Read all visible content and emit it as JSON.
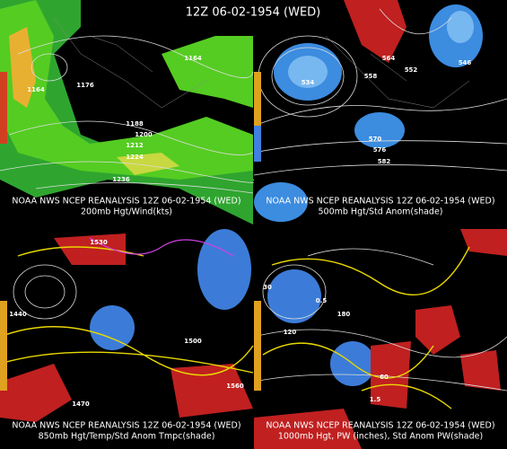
{
  "title": "12Z 06-02-1954 (WED)",
  "panels": [
    {
      "caption": "NOAA NWS NCEP REANALYSIS 12Z 06-02-1954 (WED)",
      "subcaption": "200mb Hgt/Wind(kts)",
      "labels": [
        "1176",
        "1164",
        "1164",
        "1188",
        "1200",
        "1212",
        "1224",
        "1236"
      ]
    },
    {
      "caption": "NOAA NWS NCEP REANALYSIS 12Z 06-02-1954 (WED)",
      "subcaption": "500mb Hgt/Std Anom(shade)",
      "labels": [
        "564",
        "558",
        "552",
        "546",
        "534",
        "570",
        "576",
        "582"
      ]
    },
    {
      "caption": "NOAA NWS NCEP REANALYSIS 12Z 06-02-1954 (WED)",
      "subcaption": "850mb Hgt/Temp/Std Anom Tmpc(shade)",
      "labels": [
        "1530",
        "1500",
        "1470",
        "1440",
        "1560"
      ]
    },
    {
      "caption": "NOAA NWS NCEP REANALYSIS 12Z 06-02-1954 (WED)",
      "subcaption": "1000mb Hgt, PW (inches), Std Anom PW(shade)",
      "labels": [
        "120",
        "180",
        "60",
        "0.5",
        "1.5",
        "30"
      ]
    }
  ]
}
